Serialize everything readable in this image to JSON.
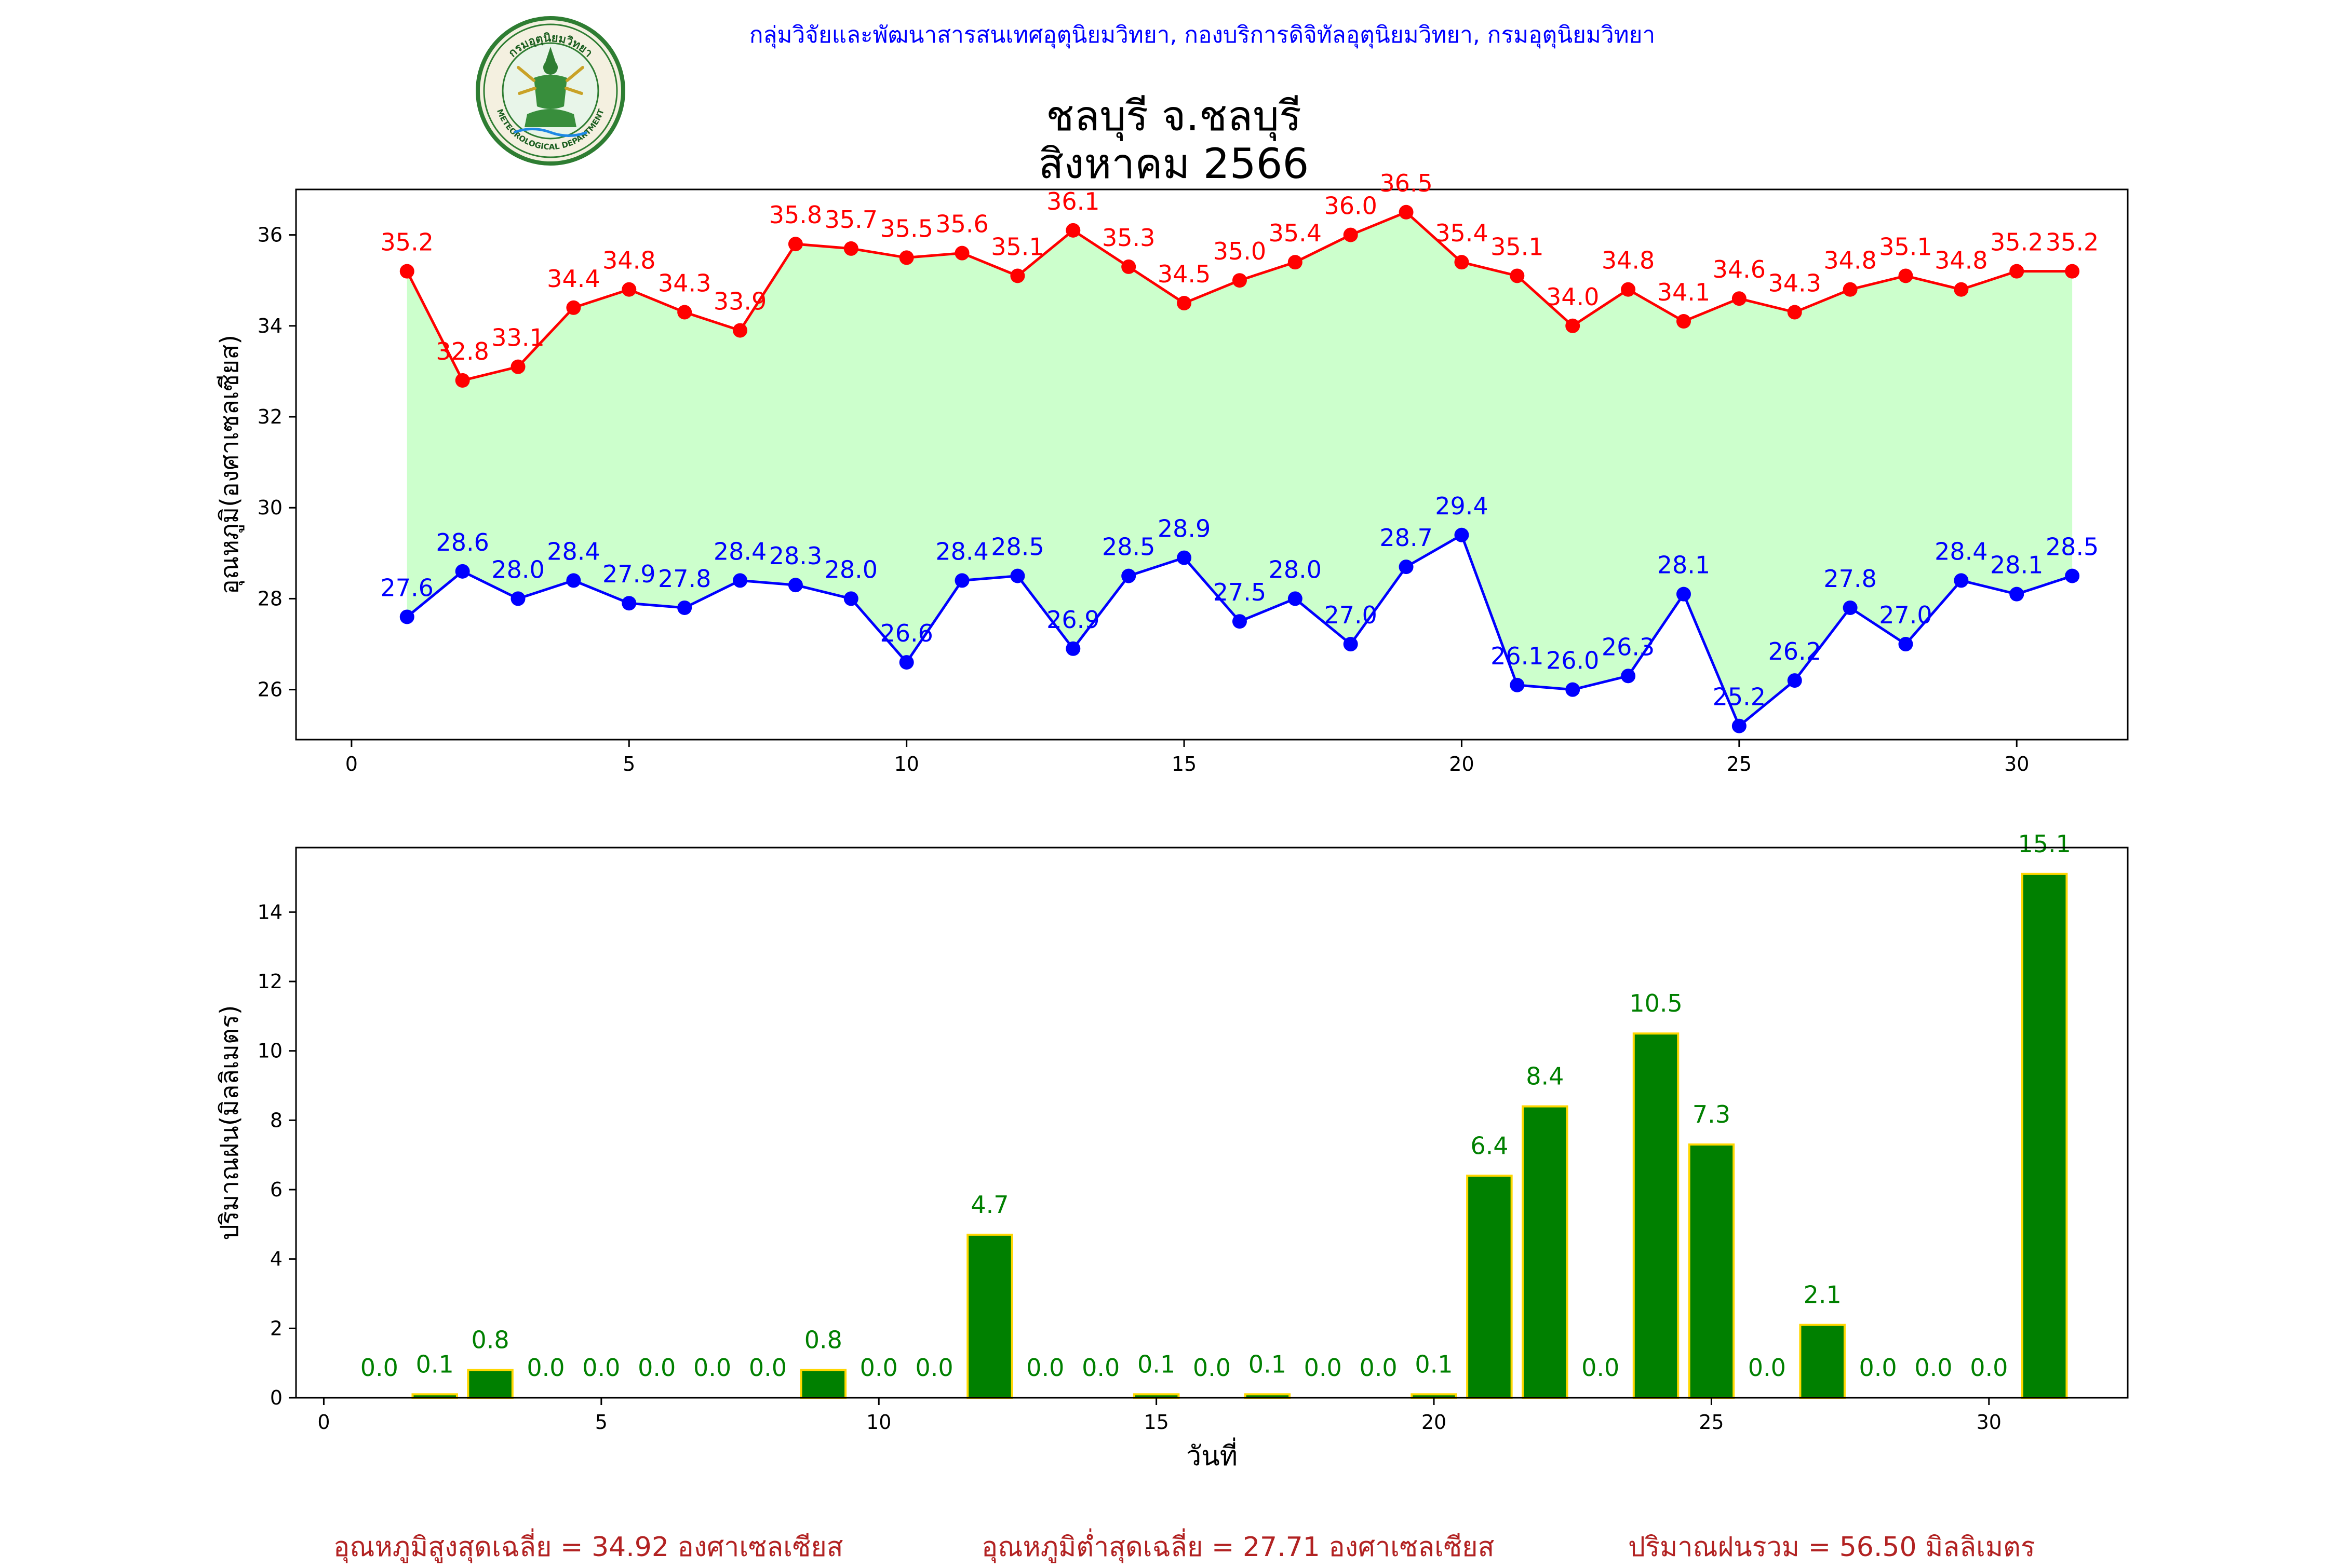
{
  "header": {
    "org_text": "กลุ่มวิจัยและพัฒนาสารสนเทศอุตุนิยมวิทยา, กองบริการดิจิทัลอุตุนิยมวิทยา, กรมอุตุนิยมวิทยา",
    "logo_text_top": "กรมอุตุนิยมวิทยา",
    "logo_text_bottom": "METEOROLOGICAL DEPARTMENT"
  },
  "title": {
    "line1": "ชลบุรี จ.ชลบุรี",
    "line2": "สิงหาคม 2566"
  },
  "colors": {
    "max_temp": "#ff0000",
    "min_temp": "#0000ff",
    "fill": "#ccffcc",
    "rain_bar": "#008000",
    "rain_edge": "#ffd700",
    "rain_label": "#008000",
    "header": "#0000ff",
    "footer": "#b22222"
  },
  "chart_data": [
    {
      "type": "line",
      "title": "",
      "xlabel": "",
      "ylabel": "อุณหภูมิ(องศาเซลเซียส)",
      "x": [
        1,
        2,
        3,
        4,
        5,
        6,
        7,
        8,
        9,
        10,
        11,
        12,
        13,
        14,
        15,
        16,
        17,
        18,
        19,
        20,
        21,
        22,
        23,
        24,
        25,
        26,
        27,
        28,
        29,
        30,
        31
      ],
      "xlim": [
        -1,
        32
      ],
      "ylim": [
        24.9,
        37.0
      ],
      "xticks": [
        0,
        5,
        10,
        15,
        20,
        25,
        30
      ],
      "yticks": [
        26,
        28,
        30,
        32,
        34,
        36
      ],
      "fill_between": true,
      "series": [
        {
          "key": "max",
          "values": [
            35.2,
            32.8,
            33.1,
            34.4,
            34.8,
            34.3,
            33.9,
            35.8,
            35.7,
            35.5,
            35.6,
            35.1,
            36.1,
            35.3,
            34.5,
            35.0,
            35.4,
            36.0,
            36.5,
            35.4,
            35.1,
            34.0,
            34.8,
            34.1,
            34.6,
            34.3,
            34.8,
            35.1,
            34.8,
            35.2,
            35.2
          ]
        },
        {
          "key": "min",
          "values": [
            27.6,
            28.6,
            28.0,
            28.4,
            27.9,
            27.8,
            28.4,
            28.3,
            28.0,
            26.6,
            28.4,
            28.5,
            26.9,
            28.5,
            28.9,
            27.5,
            28.0,
            27.0,
            28.7,
            29.4,
            26.1,
            26.0,
            26.3,
            28.1,
            25.2,
            26.2,
            27.8,
            27.0,
            28.4,
            28.1,
            28.5
          ]
        }
      ]
    },
    {
      "type": "bar",
      "title": "",
      "xlabel": "วันที่",
      "ylabel": "ปริมาณฝน(มิลลิเมตร)",
      "x": [
        1,
        2,
        3,
        4,
        5,
        6,
        7,
        8,
        9,
        10,
        11,
        12,
        13,
        14,
        15,
        16,
        17,
        18,
        19,
        20,
        21,
        22,
        23,
        24,
        25,
        26,
        27,
        28,
        29,
        30,
        31
      ],
      "values": [
        0.0,
        0.1,
        0.8,
        0.0,
        0.0,
        0.0,
        0.0,
        0.0,
        0.8,
        0.0,
        0.0,
        4.7,
        0.0,
        0.0,
        0.1,
        0.0,
        0.1,
        0.0,
        0.0,
        0.1,
        6.4,
        8.4,
        0.0,
        10.5,
        7.3,
        0.0,
        2.1,
        0.0,
        0.0,
        0.0,
        15.1
      ],
      "xlim": [
        -0.5,
        32.5
      ],
      "ylim": [
        0,
        15.86
      ],
      "xticks": [
        0,
        5,
        10,
        15,
        20,
        25,
        30
      ],
      "yticks": [
        0,
        2,
        4,
        6,
        8,
        10,
        12,
        14
      ]
    }
  ],
  "footer": {
    "avg_max": "อุณหภูมิสูงสุดเฉลี่ย = 34.92 องศาเซลเซียส",
    "avg_min": "อุณหภูมิต่ำสุดเฉลี่ย = 27.71 องศาเซลเซียส",
    "total_rain": "ปริมาณฝนรวม = 56.50 มิลลิเมตร"
  }
}
